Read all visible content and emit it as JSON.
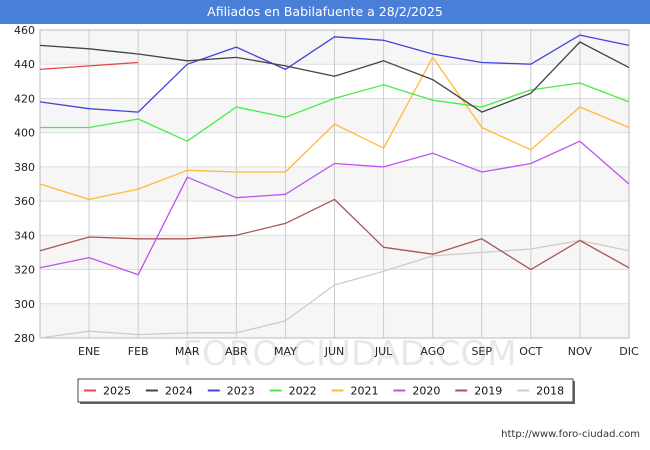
{
  "chart_data": {
    "type": "line",
    "title": "Afiliados en Babilafuente a 28/2/2025",
    "xlabel": "",
    "ylabel": "",
    "categories": [
      "",
      "ENE",
      "FEB",
      "MAR",
      "ABR",
      "MAY",
      "JUN",
      "JUL",
      "AGO",
      "SEP",
      "OCT",
      "NOV",
      "DIC"
    ],
    "ylim": [
      280,
      460
    ],
    "yticks": [
      280,
      300,
      320,
      340,
      360,
      380,
      400,
      420,
      440,
      460
    ],
    "grid": true,
    "legend_position": "bottom",
    "series": [
      {
        "name": "2025",
        "color": "#ee4444",
        "values": [
          437,
          439,
          441,
          null,
          null,
          null,
          null,
          null,
          null,
          null,
          null,
          null,
          null
        ]
      },
      {
        "name": "2024",
        "color": "#444444",
        "values": [
          451,
          449,
          446,
          442,
          444,
          439,
          433,
          442,
          431,
          412,
          423,
          453,
          438
        ]
      },
      {
        "name": "2023",
        "color": "#4444dd",
        "values": [
          418,
          414,
          412,
          440,
          450,
          437,
          456,
          454,
          446,
          441,
          440,
          457,
          451
        ]
      },
      {
        "name": "2022",
        "color": "#44ee44",
        "values": [
          403,
          403,
          408,
          395,
          415,
          409,
          420,
          428,
          419,
          415,
          425,
          429,
          418
        ]
      },
      {
        "name": "2021",
        "color": "#ffbb33",
        "values": [
          370,
          361,
          367,
          378,
          377,
          377,
          405,
          391,
          444,
          403,
          390,
          415,
          403
        ]
      },
      {
        "name": "2020",
        "color": "#bb55ee",
        "values": [
          321,
          327,
          317,
          374,
          362,
          364,
          382,
          380,
          388,
          377,
          382,
          395,
          370
        ]
      },
      {
        "name": "2019",
        "color": "#aa5555",
        "values": [
          331,
          339,
          338,
          338,
          340,
          347,
          361,
          333,
          329,
          338,
          320,
          337,
          321
        ]
      },
      {
        "name": "2018",
        "color": "#cccccc",
        "values": [
          280,
          284,
          282,
          283,
          283,
          290,
          311,
          319,
          328,
          330,
          332,
          337,
          331
        ]
      }
    ]
  },
  "watermark": "FORO-CIUDAD.COM",
  "source_url": "http://www.foro-ciudad.com"
}
